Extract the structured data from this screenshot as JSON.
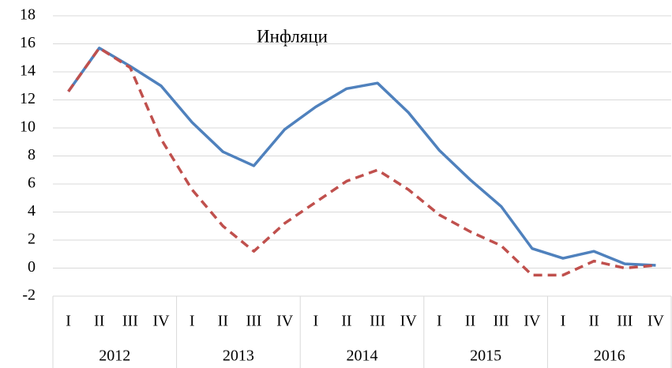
{
  "chart_data": {
    "type": "line",
    "title": "Инфляци",
    "categories": [
      "I",
      "II",
      "III",
      "IV",
      "I",
      "II",
      "III",
      "IV",
      "I",
      "II",
      "III",
      "IV",
      "I",
      "II",
      "III",
      "IV",
      "I",
      "II",
      "III",
      "IV"
    ],
    "years": [
      "2012",
      "2013",
      "2014",
      "2015",
      "2016"
    ],
    "series": [
      {
        "color": "#4f81bd",
        "style": "solid",
        "values": [
          12.6,
          15.7,
          14.4,
          13.0,
          10.4,
          8.3,
          7.3,
          9.9,
          11.5,
          12.8,
          13.2,
          11.1,
          8.4,
          6.3,
          4.4,
          1.4,
          0.7,
          1.2,
          0.3,
          0.2
        ]
      },
      {
        "color": "#c0504d",
        "style": "dashed",
        "values": [
          12.6,
          15.7,
          14.3,
          9.2,
          5.6,
          3.0,
          1.2,
          3.2,
          4.7,
          6.2,
          7.0,
          5.6,
          3.8,
          2.6,
          1.6,
          -0.5,
          -0.5,
          0.5,
          0.0,
          0.2
        ]
      }
    ],
    "ylim": [
      -2,
      18
    ],
    "yticks": [
      -2,
      0,
      2,
      4,
      6,
      8,
      10,
      12,
      14,
      16,
      18
    ],
    "grid": true
  }
}
